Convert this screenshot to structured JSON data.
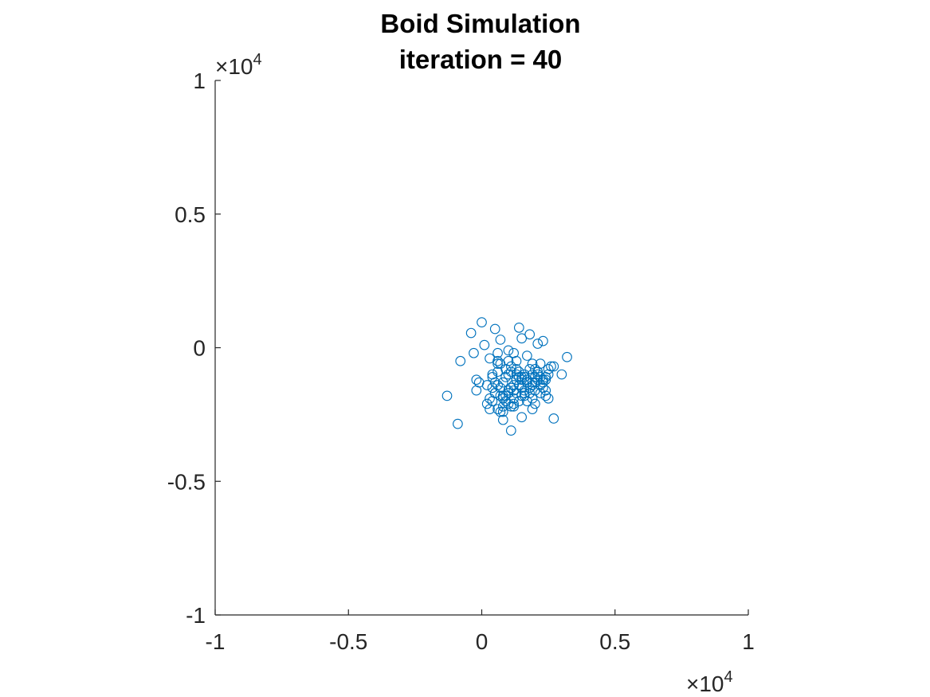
{
  "chart_data": {
    "type": "scatter",
    "title": "Boid Simulation",
    "subtitle": "iteration = 40",
    "xlabel": "",
    "ylabel": "",
    "xlim": [
      -10000,
      10000
    ],
    "ylim": [
      -10000,
      10000
    ],
    "x_multiplier": {
      "times": "×",
      "base": "10",
      "exponent": "4"
    },
    "y_multiplier": {
      "times": "×",
      "base": "10",
      "exponent": "4"
    },
    "x_ticks": [
      {
        "value": -10000,
        "label": "-1"
      },
      {
        "value": -5000,
        "label": "-0.5"
      },
      {
        "value": 0,
        "label": "0"
      },
      {
        "value": 5000,
        "label": "0.5"
      },
      {
        "value": 10000,
        "label": "1"
      }
    ],
    "y_ticks": [
      {
        "value": -10000,
        "label": "-1"
      },
      {
        "value": -5000,
        "label": "-0.5"
      },
      {
        "value": 0,
        "label": "0"
      },
      {
        "value": 5000,
        "label": "0.5"
      },
      {
        "value": 10000,
        "label": "1"
      }
    ],
    "grid": false,
    "marker": "open-circle",
    "color": "#0072BD",
    "series": [
      {
        "x": [
          0,
          -400,
          500,
          1400,
          -1300,
          -900,
          -800,
          3200,
          3000,
          2700,
          1100,
          800,
          1800,
          2300,
          1500,
          2100,
          1000,
          700,
          1300,
          1900,
          1200,
          600,
          2000,
          1700,
          400,
          900,
          1600,
          2400,
          2200,
          1100,
          300,
          -200,
          -100,
          200,
          800,
          1500,
          1900,
          1200,
          500,
          2100,
          2500,
          1800,
          1300,
          700,
          1000,
          1600,
          2300,
          1400,
          600,
          300,
          900,
          1700,
          2000,
          2600,
          100,
          -300,
          400,
          1100,
          2200,
          1500,
          800,
          1900,
          1300,
          600,
          2400,
          1000,
          1700,
          500,
          2100,
          1200,
          1800,
          900,
          1400,
          2000,
          700,
          1600,
          2300,
          1100,
          300,
          1900,
          2500,
          800,
          1500,
          1200,
          2200,
          600,
          1000,
          1700,
          2100,
          1300,
          400,
          1800,
          900,
          2400,
          1400,
          700,
          2000,
          1600,
          1100,
          500,
          200,
          -200,
          1200,
          2700,
          1500,
          1900,
          800,
          2300,
          1000,
          1300,
          600,
          1700,
          2100,
          1400,
          900,
          1800,
          2500,
          1200,
          400,
          1600,
          2000,
          700,
          1100,
          2200,
          1500,
          800,
          1300,
          1900,
          1000,
          2400,
          600,
          1700
        ],
        "y": [
          950,
          550,
          700,
          750,
          -1800,
          -2850,
          -500,
          -350,
          -1000,
          -2650,
          -3100,
          -2700,
          500,
          250,
          350,
          150,
          -100,
          300,
          -1200,
          -1400,
          -1600,
          -900,
          -800,
          -300,
          -1500,
          -2000,
          -1800,
          -1600,
          -1100,
          -700,
          -1900,
          -1200,
          -1300,
          -2100,
          -2400,
          -2600,
          -2300,
          -2200,
          -1700,
          -900,
          -1900,
          -1500,
          -500,
          -600,
          -1000,
          -1100,
          -1300,
          -1400,
          -200,
          -400,
          -800,
          -2000,
          -2100,
          -700,
          100,
          -200,
          -1000,
          -1500,
          -600,
          -1200,
          -1800,
          -1000,
          -1700,
          -1400,
          -1800,
          -500,
          -1300,
          -1700,
          -1000,
          -1900,
          -800,
          -1100,
          -900,
          -1300,
          -1500,
          -1600,
          -1200,
          -2200,
          -2300,
          -600,
          -800,
          -1300,
          -1500,
          -2100,
          -1700,
          -500,
          -1600,
          -1200,
          -900,
          -800,
          -1100,
          -1500,
          -1800,
          -1200,
          -2000,
          -2400,
          -1100,
          -1000,
          -900,
          -1300,
          -1400,
          -1600,
          -200,
          -700,
          -1100,
          -1900,
          -2200,
          -1500,
          -2100,
          -1200,
          -2300,
          -1300,
          -1200,
          -1100,
          -2000,
          -1700,
          -1000,
          -1400,
          -2000,
          -1700,
          -1600,
          -1800,
          -1500,
          -1400,
          -1800,
          -1900,
          -1000,
          -1300,
          -1700,
          -1100,
          -600,
          -1200
        ]
      }
    ]
  }
}
